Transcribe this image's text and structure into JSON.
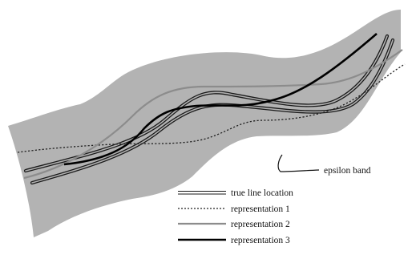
{
  "annotation": {
    "text": "epsilon band"
  },
  "legend": {
    "items": [
      {
        "label": "true line location",
        "style": "double-line"
      },
      {
        "label": "representation 1",
        "style": "dotted"
      },
      {
        "label": "representation 2",
        "style": "gray-solid"
      },
      {
        "label": "representation 3",
        "style": "thick-black"
      }
    ]
  },
  "colors": {
    "band": "#b3b3b3",
    "true_line": "#1a1a1a",
    "representation_1": "#222222",
    "representation_2": "#8c8c8c",
    "representation_3": "#000000",
    "background": "#ffffff"
  }
}
